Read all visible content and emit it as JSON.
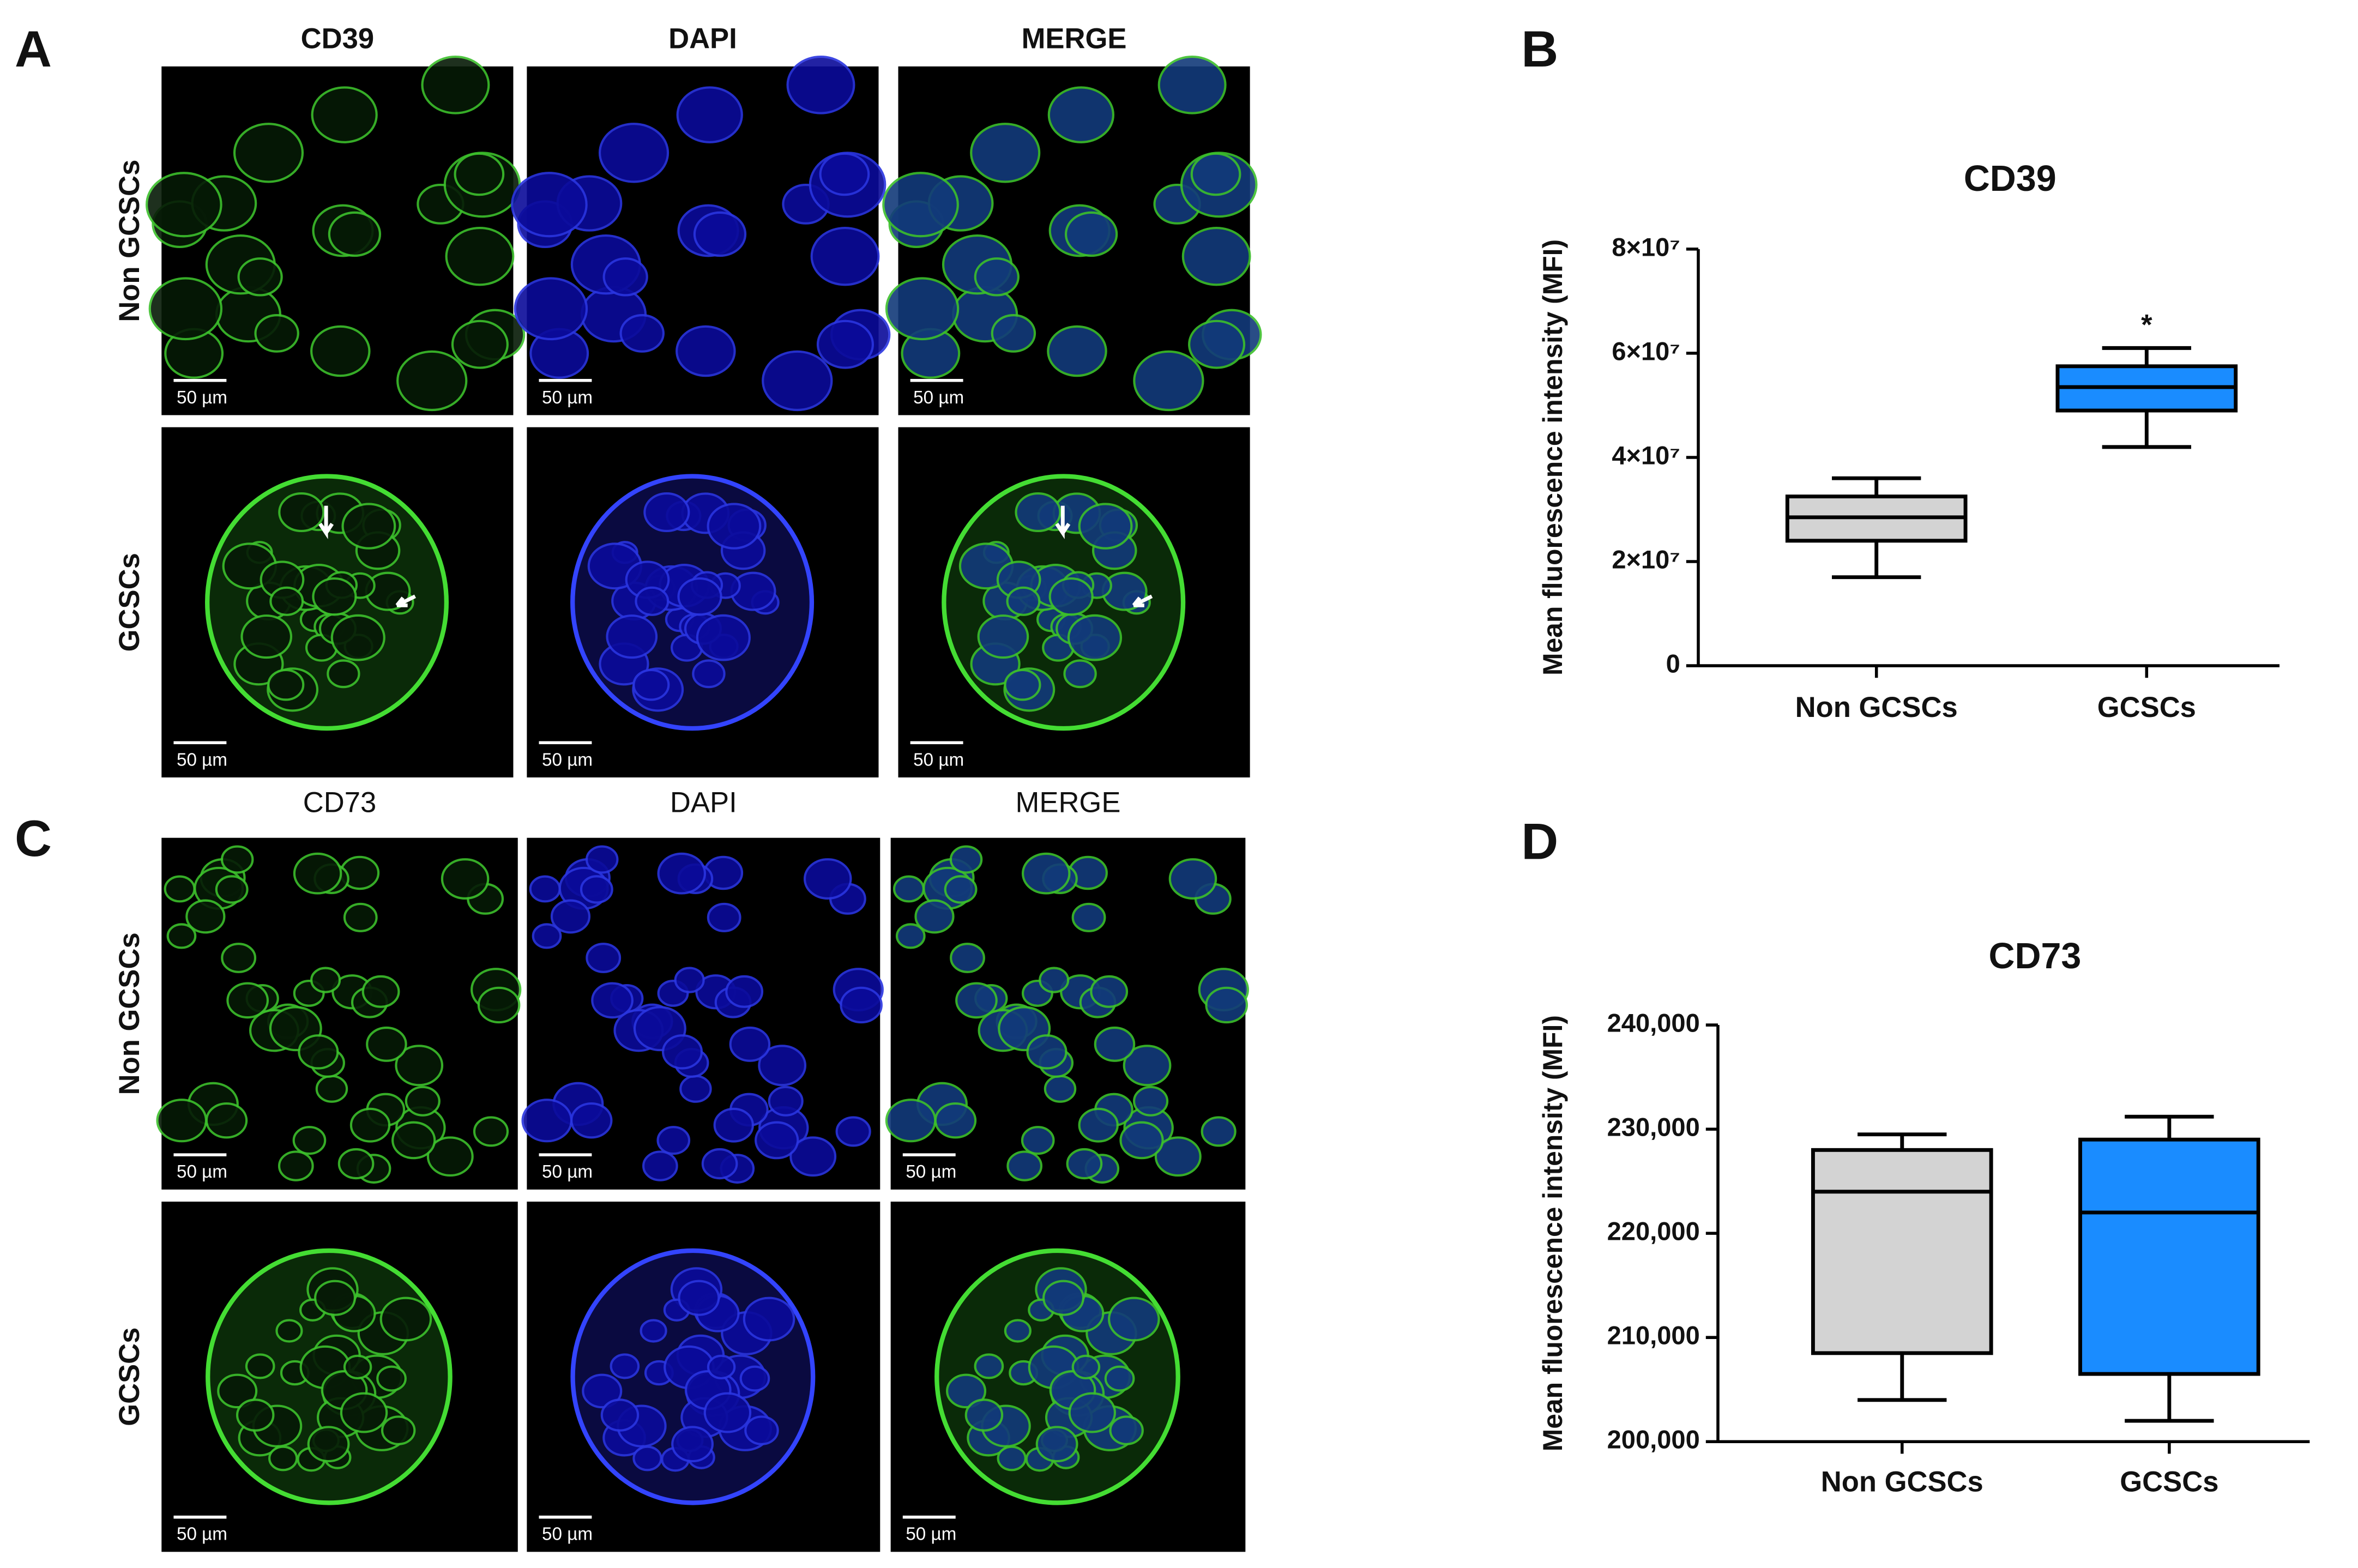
{
  "figure": {
    "panels": [
      {
        "letter": "A",
        "columns": [
          "CD39",
          "DAPI",
          "MERGE"
        ],
        "rows": [
          "Non GCSCs",
          "GCSCs"
        ],
        "scale_bar": "50 µm"
      },
      {
        "letter": "C",
        "columns": [
          "CD73",
          "DAPI",
          "MERGE"
        ],
        "rows": [
          "Non GCSCs",
          "GCSCs"
        ],
        "scale_bar": "50 µm"
      }
    ]
  },
  "chart_data": [
    {
      "type": "box",
      "letter": "B",
      "title": "CD39",
      "y_label": "Mean fluorescence intensity (MFI)",
      "categories": [
        "Non GCSCs",
        "GCSCs"
      ],
      "colors": [
        "#d3d3d3",
        "#1a8cff"
      ],
      "boxes": [
        {
          "min": 17000000,
          "q1": 24000000,
          "median": 28500000,
          "q3": 32500000,
          "max": 36000000
        },
        {
          "min": 42000000,
          "q1": 49000000,
          "median": 53500000,
          "q3": 57500000,
          "max": 61000000
        }
      ],
      "annotations": [
        {
          "x": "GCSCs",
          "text": "*"
        }
      ],
      "ylim": [
        0,
        80000000
      ],
      "yticks": [
        0,
        {
          "value": 20000000,
          "label": "2×10⁷"
        },
        {
          "value": 40000000,
          "label": "4×10⁷"
        },
        {
          "value": 60000000,
          "label": "6×10⁷"
        },
        {
          "value": 80000000,
          "label": "8×10⁷"
        }
      ]
    },
    {
      "type": "box",
      "letter": "D",
      "title": "CD73",
      "y_label": "Mean fluorescence intensity (MFI)",
      "categories": [
        "Non GCSCs",
        "GCSCs"
      ],
      "colors": [
        "#d3d3d3",
        "#1a8cff"
      ],
      "boxes": [
        {
          "min": 204000,
          "q1": 208500,
          "median": 224000,
          "q3": 228000,
          "max": 229500
        },
        {
          "min": 202000,
          "q1": 206500,
          "median": 222000,
          "q3": 229000,
          "max": 231200
        }
      ],
      "ylim": [
        200000,
        240000
      ],
      "yticks": [
        {
          "value": 200000,
          "label": "200,000"
        },
        {
          "value": 210000,
          "label": "210,000"
        },
        {
          "value": 220000,
          "label": "220,000"
        },
        {
          "value": 230000,
          "label": "230,000"
        },
        {
          "value": 240000,
          "label": "240,000"
        }
      ]
    }
  ]
}
